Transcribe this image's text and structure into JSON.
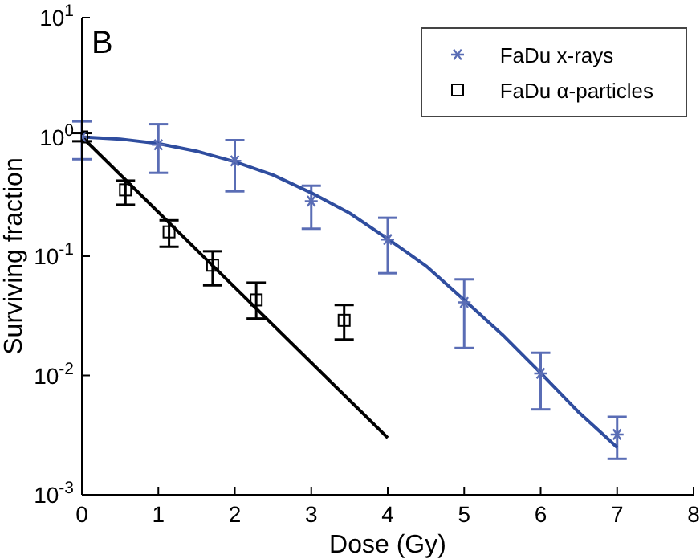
{
  "chart_data": {
    "type": "scatter",
    "xlabel": "Dose (Gy)",
    "ylabel": "Surviving fraction",
    "annotations": [
      "B"
    ],
    "xlim": [
      0,
      8
    ],
    "xticks": [
      0,
      1,
      2,
      3,
      4,
      5,
      6,
      7,
      8
    ],
    "ylim": [
      0.001,
      10
    ],
    "yticks": [
      {
        "value": 0.001,
        "label": "10$^{-3}$"
      },
      {
        "value": 0.01,
        "label": "10$^{-2}$"
      },
      {
        "value": 0.1,
        "label": "10$^{-1}$"
      },
      {
        "value": 1,
        "label": "10$^{0}$"
      },
      {
        "value": 10,
        "label": "10$^{1}$"
      }
    ],
    "log": "y",
    "legend": "top right",
    "series": [
      {
        "name": "FaDu x-rays",
        "marker": "cross",
        "color": "#5a6db5",
        "x": [
          0,
          1,
          2,
          3,
          4,
          5,
          6,
          7
        ],
        "values": [
          1.0,
          0.86,
          0.63,
          0.29,
          0.138,
          0.041,
          0.0104,
          0.0032
        ],
        "errors": [
          [
            0.65,
            1.35
          ],
          [
            0.5,
            1.28
          ],
          [
            0.35,
            0.94
          ],
          [
            0.17,
            0.39
          ],
          [
            0.072,
            0.21
          ],
          [
            0.017,
            0.064
          ],
          [
            0.0052,
            0.0155
          ],
          [
            0.002,
            0.0045
          ]
        ]
      },
      {
        "name": "FaDu α-particles",
        "marker": "square",
        "color": "#000000",
        "x": [
          0,
          0.57,
          1.14,
          1.71,
          2.28,
          3.43
        ],
        "values": [
          1.0,
          0.36,
          0.16,
          0.084,
          0.043,
          0.029
        ],
        "errors": [
          [
            0.92,
            1.08
          ],
          [
            0.27,
            0.43
          ],
          [
            0.12,
            0.2
          ],
          [
            0.057,
            0.11
          ],
          [
            0.03,
            0.06
          ],
          [
            0.02,
            0.039
          ]
        ]
      },
      {
        "type": "line",
        "marker": "none",
        "line_style": "solid",
        "color": "#2f4d9f",
        "x": [
          0,
          0.5,
          1,
          1.5,
          2,
          2.5,
          3,
          3.5,
          4,
          4.5,
          5,
          5.5,
          6,
          6.5,
          7
        ],
        "values": [
          1.0,
          0.96,
          0.88,
          0.76,
          0.62,
          0.48,
          0.34,
          0.23,
          0.14,
          0.083,
          0.043,
          0.022,
          0.0105,
          0.0049,
          0.0025
        ]
      },
      {
        "type": "line",
        "marker": "none",
        "line_style": "solid",
        "color": "#000000",
        "x": [
          0,
          4
        ],
        "values": [
          1.0,
          0.003
        ]
      }
    ]
  }
}
